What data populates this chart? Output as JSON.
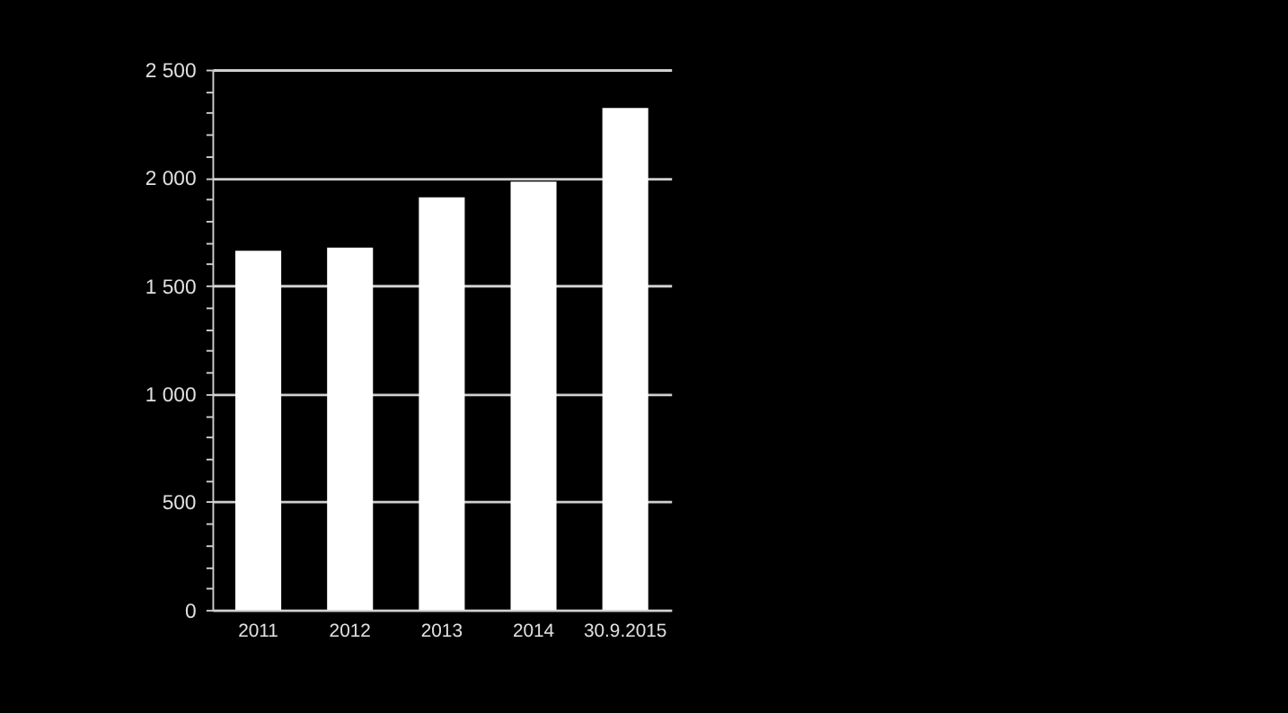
{
  "chart_data": {
    "type": "bar",
    "categories": [
      "2011",
      "2012",
      "2013",
      "2014",
      "30.9.2015"
    ],
    "values": [
      1662,
      1677,
      1909,
      1982,
      2323
    ],
    "color": "#ffffff",
    "ylim": [
      0,
      2500
    ],
    "yticks": [
      0,
      {
        "value": 100,
        "label": null
      },
      {
        "value": 200,
        "label": null
      },
      {
        "value": 300,
        "label": null
      },
      {
        "value": 400,
        "label": null
      },
      500,
      {
        "value": 600,
        "label": null
      },
      {
        "value": 700,
        "label": null
      },
      {
        "value": 800,
        "label": null
      },
      {
        "value": 900,
        "label": null
      },
      {
        "value": 1000,
        "label": "1 000"
      },
      {
        "value": 1100,
        "label": null
      },
      {
        "value": 1200,
        "label": null
      },
      {
        "value": 1300,
        "label": null
      },
      {
        "value": 1400,
        "label": null
      },
      {
        "value": 1500,
        "label": "1 500"
      },
      {
        "value": 1600,
        "label": null
      },
      {
        "value": 1700,
        "label": null
      },
      {
        "value": 1800,
        "label": null
      },
      {
        "value": 1900,
        "label": null
      },
      {
        "value": 2000,
        "label": "2 000"
      },
      {
        "value": 2100,
        "label": null
      },
      {
        "value": 2200,
        "label": null
      },
      {
        "value": 2300,
        "label": null
      },
      {
        "value": 2400,
        "label": null
      },
      {
        "value": 2500,
        "label": "2 500"
      }
    ],
    "grid": "y"
  }
}
